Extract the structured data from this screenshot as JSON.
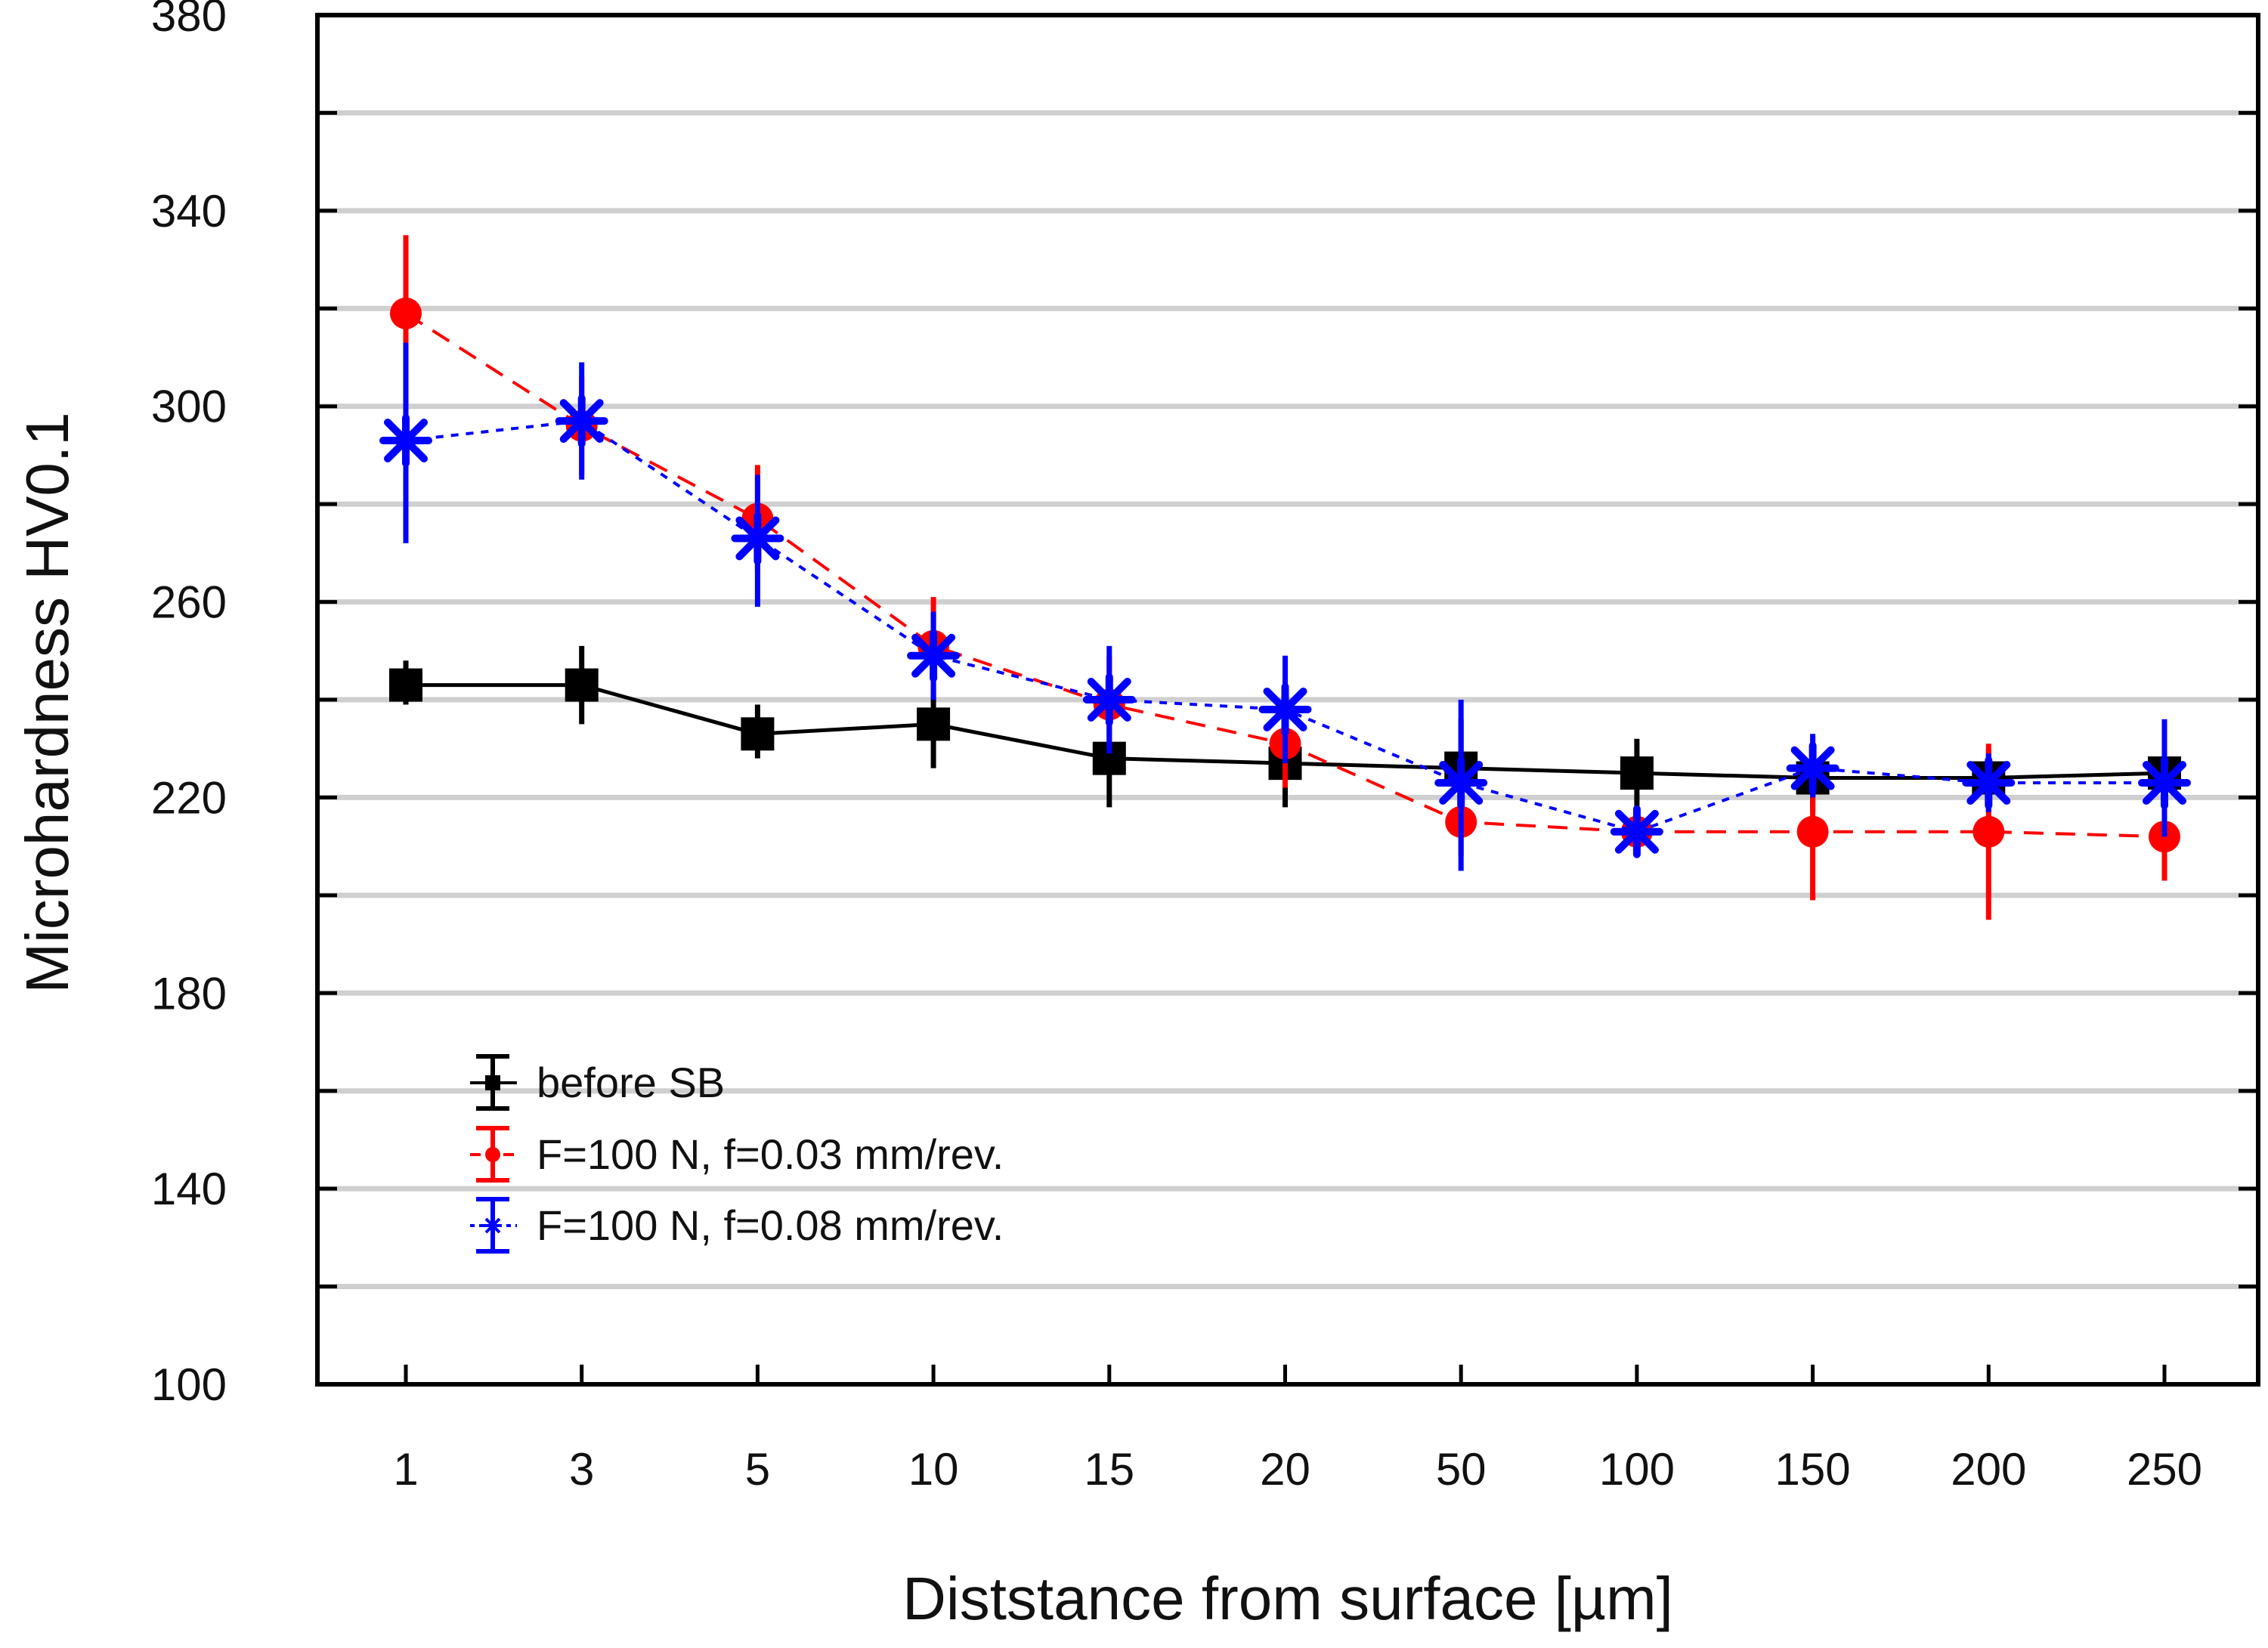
{
  "chart_data": {
    "type": "line",
    "title": "",
    "xlabel": "Diststance from surface [µm]",
    "ylabel": "Microhardness HV0.1",
    "categories": [
      "1",
      "3",
      "5",
      "10",
      "15",
      "20",
      "50",
      "100",
      "150",
      "200",
      "250"
    ],
    "ylim": [
      100,
      380
    ],
    "yticks": [
      100,
      140,
      180,
      220,
      260,
      300,
      340,
      380
    ],
    "grid": true,
    "legend_position": "lower-left",
    "series": [
      {
        "name": "before SB",
        "color": "#000000",
        "line_style": "solid",
        "marker": "square",
        "values": [
          243,
          243,
          233,
          235,
          228,
          227,
          226,
          225,
          224,
          224,
          225
        ],
        "error_low": [
          239,
          235,
          228,
          226,
          218,
          218,
          216,
          217,
          217,
          217,
          217
        ],
        "error_high": [
          248,
          251,
          239,
          243,
          238,
          236,
          236,
          232,
          231,
          230,
          233
        ]
      },
      {
        "name": "F=100 N, f=0.03 mm/rev.",
        "color": "#ff0000",
        "line_style": "dashed",
        "marker": "circle",
        "values": [
          319,
          296,
          277,
          251,
          239,
          231,
          215,
          213,
          213,
          213,
          212
        ],
        "error_low": [
          305,
          286,
          266,
          243,
          230,
          222,
          208,
          208,
          199,
          195,
          203
        ],
        "error_high": [
          335,
          306,
          288,
          261,
          249,
          240,
          222,
          217,
          225,
          231,
          221
        ]
      },
      {
        "name": "F=100 N, f=0.08 mm/rev.",
        "color": "#0000ff",
        "line_style": "dotted",
        "marker": "asterisk",
        "values": [
          293,
          297,
          273,
          249,
          240,
          238,
          223,
          213,
          226,
          223,
          223
        ],
        "error_low": [
          272,
          285,
          259,
          240,
          229,
          227,
          205,
          209,
          220,
          217,
          212
        ],
        "error_high": [
          313,
          309,
          286,
          258,
          251,
          249,
          240,
          217,
          233,
          229,
          236
        ]
      }
    ]
  }
}
